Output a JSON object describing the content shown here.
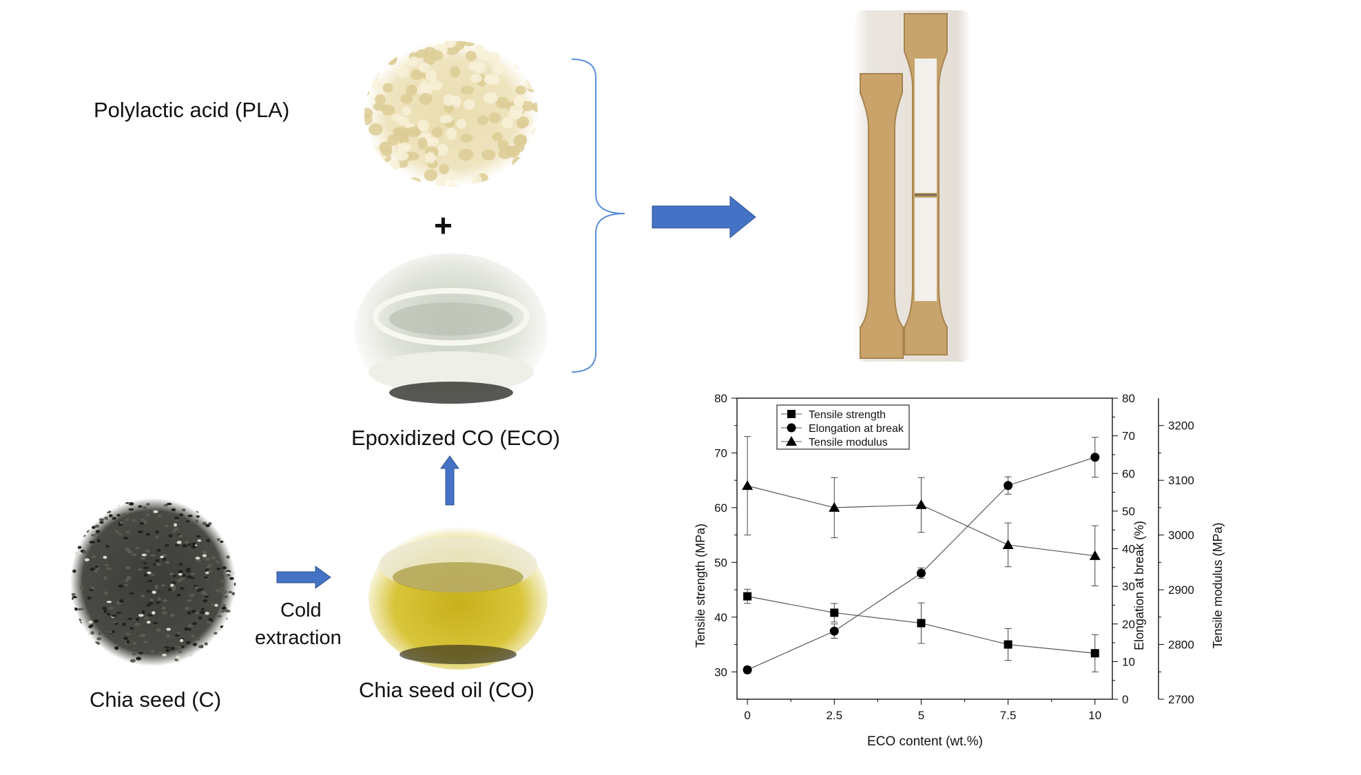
{
  "labels": {
    "pla": "Polylactic acid (PLA)",
    "plus": "+",
    "eco": "Epoxidized CO (ECO)",
    "chia_seed": "Chia seed (C)",
    "cold_line1": "Cold",
    "cold_line2": "extraction",
    "chia_oil": "Chia seed oil (CO)"
  },
  "icons": [
    "arrow-right-icon",
    "arrow-up-icon",
    "curly-brace-icon"
  ],
  "colors": {
    "arrow": "#4472c4",
    "brace": "#5b8fd6",
    "pla_pellets": "#f1e7c4",
    "eco_liquid": "#d8dccf",
    "chia_oil": "#c9b21a",
    "chia_seed": "#3a3a37",
    "specimen": "#c9a56b"
  },
  "chart_data": {
    "type": "line",
    "x": [
      0,
      2.5,
      5,
      7.5,
      10
    ],
    "xlabel": "ECO content (wt.%)",
    "x_ticks": [
      "0",
      "2.5",
      "5",
      "7.5",
      "10"
    ],
    "xlim": [
      -0.3,
      10.5
    ],
    "axes": [
      {
        "label": "Tensile strength (MPa)",
        "lim": [
          25,
          80
        ],
        "ticks": [
          "30",
          "40",
          "50",
          "60",
          "70",
          "80"
        ],
        "tick_values": [
          30,
          40,
          50,
          60,
          70,
          80
        ]
      },
      {
        "label": "Elongation at break (%)",
        "lim": [
          0,
          80
        ],
        "ticks": [
          "0",
          "10",
          "20",
          "30",
          "40",
          "50",
          "60",
          "70",
          "80"
        ],
        "tick_values": [
          0,
          10,
          20,
          30,
          40,
          50,
          60,
          70,
          80
        ]
      },
      {
        "label": "Tensile modulus (MPa)",
        "lim": [
          2700,
          3250
        ],
        "ticks": [
          "2700",
          "2800",
          "2900",
          "3000",
          "3100",
          "3200"
        ],
        "tick_values": [
          2700,
          2800,
          2900,
          3000,
          3100,
          3200
        ]
      }
    ],
    "series": [
      {
        "name": "Tensile strength",
        "marker": "square",
        "axis": 0,
        "values": [
          43.8,
          40.8,
          38.9,
          35.0,
          33.4
        ],
        "errors": [
          1.3,
          1.7,
          3.7,
          2.9,
          3.4
        ]
      },
      {
        "name": "Elongation at break",
        "marker": "circle",
        "axis": 1,
        "values": [
          7.8,
          18.1,
          33.5,
          56.8,
          64.3
        ],
        "errors": [
          0.9,
          1.9,
          1.4,
          2.3,
          5.3
        ]
      },
      {
        "name": "Tensile modulus",
        "marker": "triangle",
        "axis": 2,
        "values": [
          3090,
          3050,
          3055,
          2982,
          2962
        ],
        "errors": [
          90,
          55,
          50,
          40,
          55
        ]
      }
    ],
    "legend": "top-left",
    "grid": false
  }
}
